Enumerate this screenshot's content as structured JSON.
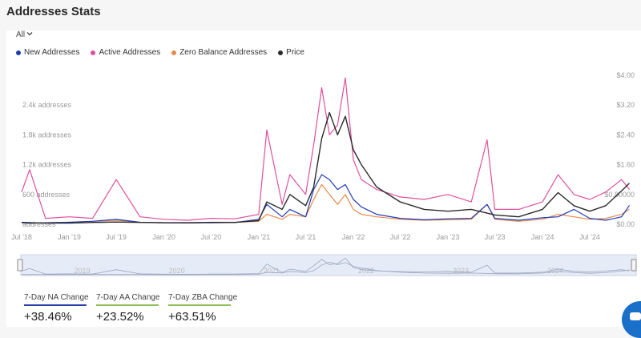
{
  "page": {
    "title": "Addresses Stats"
  },
  "period_selector": {
    "value": "All"
  },
  "colors": {
    "new_addresses": "#1f3bb3",
    "active_addresses": "#e0509e",
    "zero_balance": "#e8894a",
    "price": "#2b2b2b"
  },
  "chart_data": {
    "type": "line",
    "legend": [
      "New Addresses",
      "Active Addresses",
      "Zero Balance Addresses",
      "Price"
    ],
    "legend_position": "top-left",
    "x_tick_labels": [
      "Jul '18",
      "Jan '19",
      "Jul '19",
      "Jan '20",
      "Jul '20",
      "Jan '21",
      "Jul '21",
      "Jan '22",
      "Jul '22",
      "Jan '23",
      "Jul '23",
      "Jan '24",
      "Jul '24"
    ],
    "y_left_tick_labels": [
      "addresses",
      "600 addresses",
      "1.2k addresses",
      "1.8k addresses",
      "2.4k addresses"
    ],
    "y_right_tick_labels": [
      "$0.00",
      "$0.80000",
      "$1.60",
      "$2.40",
      "$3.20",
      "$4.00"
    ],
    "y_left_range": [
      0,
      3000
    ],
    "y_right_range": [
      0,
      4.0
    ],
    "grid": false,
    "x": [
      "2018-07",
      "2018-08",
      "2018-10",
      "2019-01",
      "2019-04",
      "2019-07",
      "2019-10",
      "2020-01",
      "2020-04",
      "2020-07",
      "2020-10",
      "2021-01",
      "2021-02",
      "2021-04",
      "2021-05",
      "2021-07",
      "2021-08",
      "2021-09",
      "2021-10",
      "2021-11",
      "2021-12",
      "2022-01",
      "2022-02",
      "2022-04",
      "2022-07",
      "2022-10",
      "2023-01",
      "2023-04",
      "2023-06",
      "2023-07",
      "2023-10",
      "2024-01",
      "2024-03",
      "2024-05",
      "2024-07",
      "2024-09",
      "2024-11",
      "2024-12"
    ],
    "series": [
      {
        "name": "New Addresses",
        "axis": "left",
        "values": [
          30,
          20,
          30,
          40,
          60,
          100,
          40,
          30,
          25,
          30,
          35,
          100,
          400,
          150,
          300,
          150,
          700,
          1000,
          900,
          700,
          800,
          500,
          350,
          200,
          120,
          90,
          110,
          120,
          400,
          120,
          80,
          130,
          150,
          300,
          120,
          80,
          150,
          380
        ]
      },
      {
        "name": "Active Addresses",
        "axis": "left",
        "values": [
          650,
          1100,
          120,
          150,
          120,
          900,
          150,
          100,
          80,
          120,
          110,
          200,
          1900,
          400,
          1000,
          600,
          1600,
          2750,
          1800,
          2000,
          2950,
          1300,
          900,
          700,
          550,
          500,
          600,
          450,
          1700,
          300,
          300,
          450,
          1000,
          600,
          500,
          650,
          900,
          700
        ]
      },
      {
        "name": "Zero Balance Addresses",
        "axis": "left",
        "values": [
          40,
          30,
          30,
          40,
          60,
          80,
          40,
          30,
          30,
          40,
          40,
          60,
          200,
          100,
          200,
          150,
          500,
          800,
          600,
          400,
          600,
          300,
          200,
          150,
          100,
          80,
          90,
          100,
          400,
          100,
          60,
          100,
          200,
          150,
          100,
          120,
          200,
          300
        ]
      },
      {
        "name": "Price",
        "axis": "right",
        "values": [
          0.05,
          0.04,
          0.03,
          0.03,
          0.05,
          0.06,
          0.05,
          0.04,
          0.04,
          0.05,
          0.05,
          0.1,
          0.6,
          0.4,
          0.8,
          0.5,
          1.0,
          2.3,
          3.0,
          2.4,
          2.9,
          2.0,
          1.6,
          1.0,
          0.6,
          0.4,
          0.35,
          0.4,
          0.3,
          0.25,
          0.2,
          0.4,
          0.85,
          0.5,
          0.35,
          0.5,
          0.9,
          1.1
        ]
      }
    ],
    "navigator": {
      "tick_labels": [
        "2019",
        "2020",
        "2021",
        "2022",
        "2023",
        "2024"
      ]
    }
  },
  "stats": [
    {
      "label": "7-Day NA Change",
      "value": "+38.46%",
      "color": "#2a3fa8"
    },
    {
      "label": "7-Day AA Change",
      "value": "+23.52%",
      "color": "#8fbf5a"
    },
    {
      "label": "7-Day ZBA Change",
      "value": "+63.51%",
      "color": "#8fbf5a"
    }
  ]
}
